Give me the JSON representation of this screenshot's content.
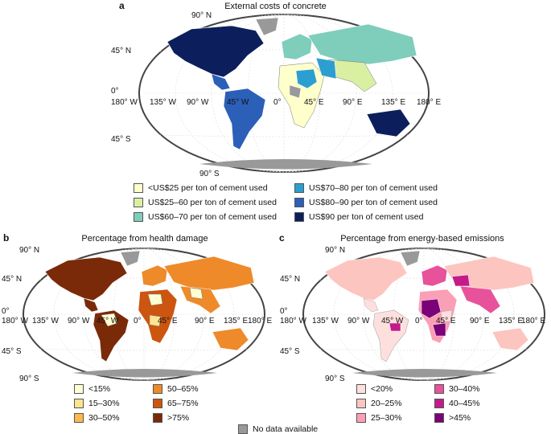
{
  "panels": {
    "a": {
      "letter": "a",
      "title": "External costs of concrete",
      "lat_labels": [
        "90° N",
        "45° N",
        "0°",
        "45° S",
        "90° S"
      ],
      "lon_labels": [
        "180° W",
        "135° W",
        "90° W",
        "45° W",
        "0°",
        "45° E",
        "90° E",
        "135° E",
        "180° E"
      ],
      "legend": [
        {
          "label": "<US$25 per ton of cement used",
          "color": "#ffffcc"
        },
        {
          "label": "US$25–60 per ton of cement used",
          "color": "#d9f0a3"
        },
        {
          "label": "US$60–70 per ton of cement used",
          "color": "#7fcdbb"
        },
        {
          "label": "US$70–80 per ton of cement used",
          "color": "#2c9fd0"
        },
        {
          "label": "US$80–90 per ton of cement used",
          "color": "#2c5fb8"
        },
        {
          "label": "US$90 per ton of cement used",
          "color": "#0c1f5c"
        }
      ]
    },
    "b": {
      "letter": "b",
      "title": "Percentage from health damage",
      "lat_labels": [
        "90° N",
        "45° N",
        "0°",
        "45° S",
        "90° S"
      ],
      "lon_labels": [
        "180° W",
        "135° W",
        "90° W",
        "45° W",
        "0°",
        "45° E",
        "90° E",
        "135° E",
        "180° E"
      ],
      "legend": [
        {
          "label": "<15%",
          "color": "#ffffd4"
        },
        {
          "label": "15–30%",
          "color": "#fee391"
        },
        {
          "label": "30–50%",
          "color": "#fdb84e"
        },
        {
          "label": "50–65%",
          "color": "#ee8a2a"
        },
        {
          "label": "65–75%",
          "color": "#cc5510"
        },
        {
          "label": ">75%",
          "color": "#7a2a08"
        }
      ]
    },
    "c": {
      "letter": "c",
      "title": "Percentage from energy-based emissions",
      "lat_labels": [
        "90° N",
        "45° N",
        "0°",
        "45° S",
        "90° S"
      ],
      "lon_labels": [
        "180° W",
        "135° W",
        "90° W",
        "45° W",
        "0°",
        "45° E",
        "90° E",
        "135° E",
        "180° E"
      ],
      "legend": [
        {
          "label": "<20%",
          "color": "#fde0dd"
        },
        {
          "label": "20–25%",
          "color": "#fcc5c0"
        },
        {
          "label": "25–30%",
          "color": "#fa9fb5"
        },
        {
          "label": "30–40%",
          "color": "#e8529a"
        },
        {
          "label": "40–45%",
          "color": "#c51b8a"
        },
        {
          "label": ">45%",
          "color": "#7a0177"
        }
      ]
    }
  },
  "nodata": {
    "label": "No data available",
    "color": "#999999"
  }
}
